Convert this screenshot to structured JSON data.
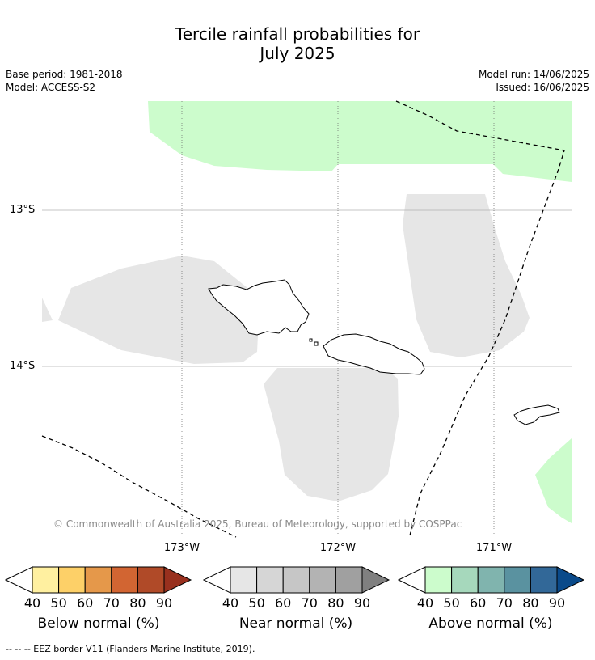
{
  "header": {
    "title_line1": "Tercile rainfall probabilities for",
    "title_line2": "July 2025",
    "base_period": "Base period: 1981-2018",
    "model": "Model: ACCESS-S2",
    "model_run": "Model run: 14/06/2025",
    "issued": "Issued: 16/06/2025"
  },
  "map": {
    "lat_labels": [
      "13°S",
      "14°S"
    ],
    "lon_labels": [
      "173°W",
      "172°W",
      "171°W"
    ],
    "copyright": "© Commonwealth of Australia 2025, Bureau of Meteorology, supported by COSPPac",
    "colors": {
      "above_40": "#ccfccc",
      "near_40": "#e6e6e6",
      "eez_line": "#000000",
      "gridline": "#b0b0b0"
    }
  },
  "legends": [
    {
      "title": "Below normal (%)",
      "ticks": [
        "40",
        "50",
        "60",
        "70",
        "80",
        "90"
      ],
      "colors": [
        "#fff0a0",
        "#fdd068",
        "#e5984a",
        "#d26532",
        "#b04a28",
        "#98301e"
      ]
    },
    {
      "title": "Near normal (%)",
      "ticks": [
        "40",
        "50",
        "60",
        "70",
        "80",
        "90"
      ],
      "colors": [
        "#e6e6e6",
        "#d6d6d6",
        "#c6c6c6",
        "#b3b3b3",
        "#a0a0a0",
        "#808080"
      ]
    },
    {
      "title": "Above normal (%)",
      "ticks": [
        "40",
        "50",
        "60",
        "70",
        "80",
        "90"
      ],
      "colors": [
        "#ccfccc",
        "#a6d8bc",
        "#80b4ae",
        "#5a92a0",
        "#326898",
        "#0a4a8a"
      ]
    }
  ],
  "footer": {
    "eez_note": "-- -- -- EEZ border V11 (Flanders Marine Institute, 2019)."
  }
}
